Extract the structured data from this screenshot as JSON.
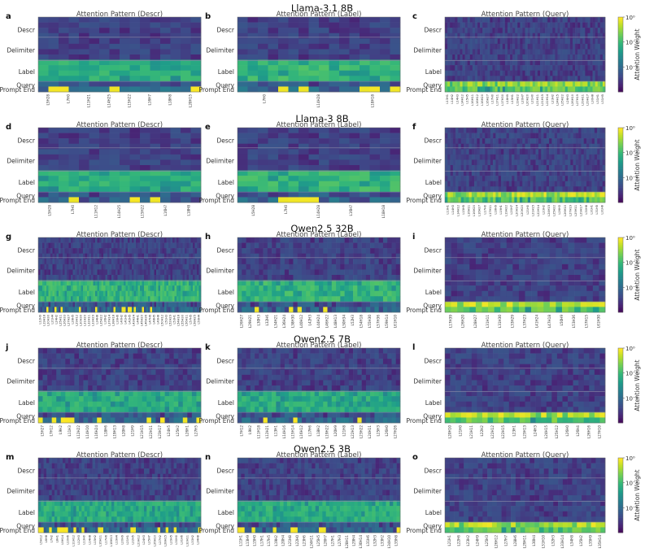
{
  "figure": {
    "rows": [
      {
        "model": "Llama-3.1 8B",
        "letters": [
          "a",
          "b",
          "c"
        ]
      },
      {
        "model": "Llama-3 8B",
        "letters": [
          "d",
          "e",
          "f"
        ]
      },
      {
        "model": "Qwen2.5 32B",
        "letters": [
          "g",
          "h",
          "i"
        ]
      },
      {
        "model": "Qwen2.5 7B",
        "letters": [
          "j",
          "k",
          "l"
        ]
      },
      {
        "model": "Qwen2.5 3B",
        "letters": [
          "m",
          "n",
          "o"
        ]
      }
    ],
    "panel_titles": [
      "Attention Pattern (Descr)",
      "Attention Pattern (Label)",
      "Attention Pattern (Query)"
    ],
    "y_labels": [
      "Descr",
      "Delimiter",
      "Label",
      "Query",
      "Prompt End"
    ],
    "colorbar": {
      "label": "Attention Weight",
      "ticks": [
        "10⁰",
        "10⁻¹",
        "10⁻²"
      ]
    }
  },
  "chart_data": {
    "type": "heatmap",
    "colormap": "viridis",
    "color_scale": "log",
    "vmin": 0.001,
    "vmax": 1,
    "colorbar_ticks": [
      1,
      0.1,
      0.01
    ],
    "x_axis": "attention heads (rotated tick labels, e.g. L16H22 = layer 16 head 22)",
    "y_axis": [
      "Descr",
      "Delimiter",
      "Label",
      "Query",
      "Prompt End"
    ],
    "panels": [
      {
        "id": "a",
        "model": "Llama-3.1 8B",
        "title": "Attention Pattern (Descr)",
        "heads": [
          "L5H28",
          "L7H0",
          "L11H21",
          "L14H25",
          "L15H22",
          "L16H7",
          "L18H8",
          "L20H15"
        ],
        "label_mean": 0.08,
        "hot_rows": "Prompt End (L20H15 ~1.0)"
      },
      {
        "id": "b",
        "model": "Llama-3.1 8B",
        "title": "Attention Pattern (Label)",
        "heads": [
          "L7H0",
          "L14H28",
          "L18H18"
        ],
        "label_mean": 0.1
      },
      {
        "id": "c",
        "model": "Llama-3.1 8B",
        "title": "Attention Pattern (Query)",
        "heads": [
          "L13H1",
          "L14H2",
          "L14H3",
          "L14H12",
          "L15H5",
          "L16H11",
          "L16H12",
          "L16H20",
          "L16H27",
          "L17H0",
          "L17H11",
          "L17H30",
          "L18H9",
          "L19H1",
          "L19H22",
          "L20H7",
          "L20H20",
          "L21H0",
          "L21H11",
          "L21H15",
          "L22H14",
          "L23H2",
          "L24H15",
          "L25H22",
          "L26H3",
          "L26H10",
          "L27H19",
          "L29H11",
          "L29H17",
          "L30H8",
          "L31H1",
          "L31H5"
        ],
        "query_mean": 0.2
      },
      {
        "id": "d",
        "model": "Llama-3 8B",
        "title": "Attention Pattern (Descr)",
        "heads": [
          "L5H28",
          "L7H0",
          "L11H12",
          "L14H25",
          "L15H22",
          "L16H7",
          "L18H8"
        ],
        "label_mean": 0.08
      },
      {
        "id": "e",
        "model": "Llama-3 8B",
        "title": "Attention Pattern (Label)",
        "heads": [
          "L5H28",
          "L7H0",
          "L14H28",
          "L16H7",
          "L18H18"
        ],
        "label_mean": 0.1
      },
      {
        "id": "f",
        "model": "Llama-3 8B",
        "title": "Attention Pattern (Query)",
        "heads": [
          "L13H1",
          "L14H3",
          "L14H12",
          "L15H5",
          "L16H11",
          "L16H20",
          "L16H27",
          "L17H0",
          "L17H11",
          "L18H9",
          "L19H1",
          "L19H22",
          "L20H7",
          "L20H14",
          "L20H20",
          "L21H0",
          "L21H15",
          "L22H14",
          "L23H2",
          "L24H15",
          "L25H22",
          "L26H3",
          "L26H10",
          "L27H19",
          "L29H11",
          "L29H17",
          "L30H8",
          "L31H1",
          "L31H5",
          "L31H8"
        ],
        "query_mean": 0.3
      },
      {
        "id": "g",
        "model": "Qwen2.5 32B",
        "title": "Attention Pattern (Descr)",
        "heads": [
          "L12H9",
          "L19H18",
          "L20H30",
          "L21H4",
          "L24H2",
          "L25H11",
          "L26H33",
          "L27H27",
          "L28H5",
          "L29H12",
          "L30H30",
          "L31H20",
          "L32H11",
          "L33H29",
          "L34H8",
          "L35H22",
          "L36H2",
          "L37H14",
          "L38H18",
          "L39H6",
          "L40H2",
          "L41H9",
          "L42H5",
          "L43H24",
          "L44H1",
          "L45H20",
          "L46H36",
          "L47H6",
          "L48H5",
          "L49H8",
          "L50H12",
          "L51H3",
          "L52H29",
          "L53H1",
          "L54H18",
          "L55H30",
          "L56H11",
          "L57H5",
          "L58H25",
          "L59H4"
        ],
        "label_mean": 0.1
      },
      {
        "id": "h",
        "model": "Qwen2.5 32B",
        "title": "Attention Pattern (Label)",
        "heads": [
          "L26H27",
          "L29H21",
          "L30H3",
          "L32H6",
          "L34H21",
          "L36H24",
          "L38H30",
          "L40H12",
          "L42H3",
          "L44H24",
          "L46H22",
          "L48H13",
          "L50H34",
          "L52H3",
          "L54H18",
          "L55H30",
          "L57H36",
          "L59H14",
          "L61H10"
        ],
        "label_mean": 0.1
      },
      {
        "id": "i",
        "model": "Qwen2.5 32B",
        "title": "Attention Pattern (Query)",
        "heads": [
          "L17H39",
          "L26H20",
          "L28H27",
          "L31H11",
          "L31H30",
          "L33H29",
          "L37H23",
          "L41H24",
          "L47H18",
          "L50H9",
          "L53H36",
          "L57H15",
          "L61H30"
        ],
        "query_mean": 0.3
      },
      {
        "id": "j",
        "model": "Qwen2.5 7B",
        "title": "Attention Pattern (Descr)",
        "heads": [
          "L5H27",
          "L7H12",
          "L9H2",
          "L11H3",
          "L12H22",
          "L14H10",
          "L16H24",
          "L18H6",
          "L19H13",
          "L20H8",
          "L21H9",
          "L21H15",
          "L22H11",
          "L23H17",
          "L24H5",
          "L25H2",
          "L26H1",
          "L27H5"
        ],
        "label_mean": 0.08
      },
      {
        "id": "k",
        "model": "Qwen2.5 7B",
        "title": "Attention Pattern (Label)",
        "heads": [
          "L7H12",
          "L9H2",
          "L11H18",
          "L12H21",
          "L13H1",
          "L14H16",
          "L15H14",
          "L16H12",
          "L17H6",
          "L18H2",
          "L19H22",
          "L20H9",
          "L21H8",
          "L22H13",
          "L23H22",
          "L24H11",
          "L25H3",
          "L26H0",
          "L27H26"
        ],
        "label_mean": 0.08
      },
      {
        "id": "l",
        "model": "Qwen2.5 7B",
        "title": "Attention Pattern (Query)",
        "heads": [
          "L20H10",
          "L21H0",
          "L21H11",
          "L22H2",
          "L22H12",
          "L22H15",
          "L23H1",
          "L23H13",
          "L24H3",
          "L24H15",
          "L25H12",
          "L26H0",
          "L26H4",
          "L26H16",
          "L27H10"
        ],
        "query_mean": 0.3
      },
      {
        "id": "m",
        "model": "Qwen2.5 3B",
        "title": "Attention Pattern (Descr)",
        "heads": [
          "L5H12",
          "L6H8",
          "L7H2",
          "L8H1",
          "L9H14",
          "L10H6",
          "L11H12",
          "L12H3",
          "L13H0",
          "L14H8",
          "L15H2",
          "L16H11",
          "L17H6",
          "L18H13",
          "L19H4",
          "L20H9",
          "L21H1",
          "L22H5",
          "L23H12",
          "L24H3",
          "L25H7",
          "L26H10",
          "L27H2",
          "L28H15",
          "L29H5",
          "L30H0",
          "L31H6",
          "L32H11",
          "L33H2",
          "L34H8"
        ],
        "label_mean": 0.08
      },
      {
        "id": "n",
        "model": "Qwen2.5 3B",
        "title": "Attention Pattern (Label)",
        "heads": [
          "L11H1",
          "L13H9",
          "L15H0",
          "L17H1",
          "L17H5",
          "L19H2",
          "L20H4",
          "L21H8",
          "L22H0",
          "L23H6",
          "L24H11",
          "L25H5",
          "L26H7",
          "L27H1",
          "L27H3",
          "L28H11",
          "L29H4",
          "L30H14",
          "L31H6",
          "L32H3",
          "L33H2",
          "L34H10",
          "L35H8"
        ],
        "label_mean": 0.08
      },
      {
        "id": "o",
        "model": "Qwen2.5 3B",
        "title": "Attention Pattern (Query)",
        "heads": [
          "L21H1",
          "L22H6",
          "L23H2",
          "L24H9",
          "L25H3",
          "L26H12",
          "L27H7",
          "L28H6",
          "L29H11",
          "L30H4",
          "L31H10",
          "L32H3",
          "L33H14",
          "L34H8",
          "L35H2",
          "L35H9",
          "L35H14"
        ],
        "query_mean": 0.3
      }
    ]
  }
}
